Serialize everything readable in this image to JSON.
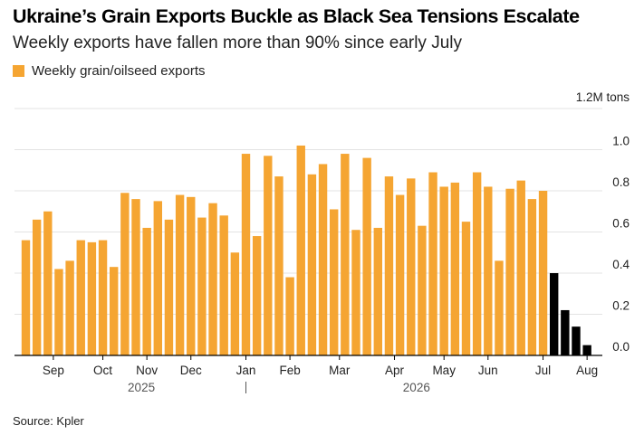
{
  "title": "Ukraine’s Grain Exports Buckle as Black Sea Tensions Escalate",
  "subtitle": "Weekly exports have fallen more than 90% since early July",
  "source": "Source: Kpler",
  "colors": {
    "series": "#f5a532",
    "recent": "#000000",
    "grid": "#e3e3e3",
    "axis": "#000000"
  },
  "chart_data": {
    "type": "bar",
    "unit_label": "1.2M tons",
    "y_ticks": [
      "1.0",
      "0.8",
      "0.6",
      "0.4",
      "0.2",
      "0.0"
    ],
    "y_tick_values": [
      1.0,
      0.8,
      0.6,
      0.4,
      0.2,
      0.0
    ],
    "ylim": [
      0,
      1.2
    ],
    "grid": true,
    "legend": {
      "position": "top-left",
      "entries": [
        "Weekly grain/oilseed exports"
      ]
    },
    "month_labels": [
      "Sep",
      "Oct",
      "Nov",
      "Dec",
      "Jan",
      "Feb",
      "Mar",
      "Apr",
      "May",
      "Jun",
      "Jul",
      "Aug"
    ],
    "month_label_bar_index": [
      2.5,
      7.0,
      11.0,
      15.0,
      20.0,
      24.0,
      28.5,
      33.5,
      38.0,
      42.0,
      47.0,
      51.0
    ],
    "year_labels": [
      "2025",
      "2026"
    ],
    "year_label_bar_index": [
      10.5,
      35.5
    ],
    "year_divider_bar_index": 20.0,
    "series": [
      {
        "name": "Weekly grain/oilseed exports",
        "values": [
          0.56,
          0.66,
          0.7,
          0.42,
          0.46,
          0.56,
          0.55,
          0.56,
          0.43,
          0.79,
          0.76,
          0.62,
          0.75,
          0.66,
          0.78,
          0.77,
          0.67,
          0.74,
          0.68,
          0.5,
          0.98,
          0.58,
          0.97,
          0.87,
          0.38,
          1.02,
          0.88,
          0.93,
          0.71,
          0.98,
          0.61,
          0.96,
          0.62,
          0.87,
          0.78,
          0.86,
          0.63,
          0.89,
          0.82,
          0.84,
          0.65,
          0.89,
          0.82,
          0.46,
          0.81,
          0.85,
          0.76,
          0.8,
          0.4,
          0.22,
          0.14,
          0.05
        ]
      }
    ],
    "highlighted_last_n": 4
  }
}
